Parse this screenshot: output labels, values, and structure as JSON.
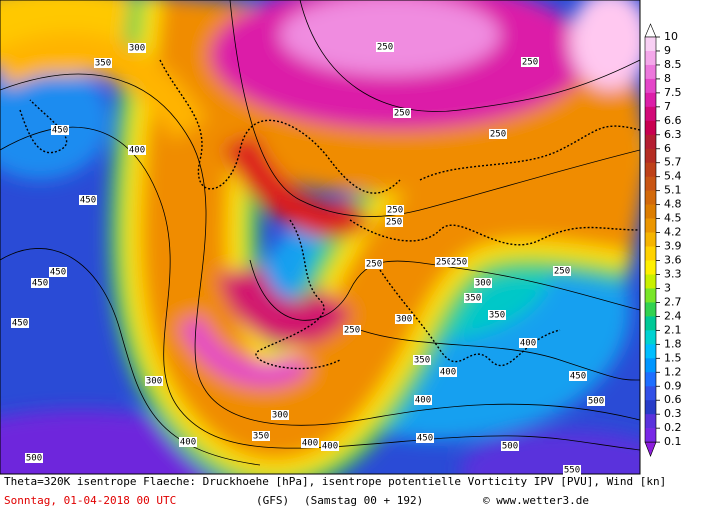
{
  "map": {
    "contour_labels": [
      300,
      350,
      400,
      450,
      450,
      450,
      450,
      450,
      300,
      300,
      350,
      400,
      400,
      400,
      450,
      500,
      500,
      550,
      250,
      250,
      250,
      250,
      250,
      250,
      250,
      250,
      250,
      250,
      250,
      300,
      300,
      350,
      350,
      350,
      400,
      400,
      400,
      450,
      500
    ]
  },
  "colorbar": {
    "ticks": [
      10,
      9,
      8.5,
      8,
      7.5,
      7,
      6.6,
      6.3,
      6,
      5.7,
      5.4,
      5.1,
      4.8,
      4.5,
      4.2,
      3.9,
      3.6,
      3.3,
      3,
      2.7,
      2.4,
      2.1,
      1.8,
      1.5,
      1.2,
      0.9,
      0.6,
      0.3,
      0.2,
      0.1
    ],
    "colors": [
      "#f8d0f4",
      "#f4a8ea",
      "#ec78dc",
      "#e446c8",
      "#dc1ea8",
      "#d20a78",
      "#c80050",
      "#b41e32",
      "#b42d23",
      "#be4119",
      "#c85514",
      "#d2690a",
      "#dc7d00",
      "#eb9600",
      "#f5b400",
      "#ffd200",
      "#fff000",
      "#c8f000",
      "#78e628",
      "#32d250",
      "#00c896",
      "#00d2d2",
      "#00beff",
      "#0096ff",
      "#1e6eff",
      "#3250e6",
      "#283cc8",
      "#5a32dc",
      "#7828e6"
    ],
    "over_color": "#ffffff",
    "under_color": "#8c1edc"
  },
  "footer": {
    "description": "Theta=320K isentrope Flaeche: Druckhoehe [hPa], isentrope potentielle Vorticity IPV [PVU], Wind [kn]",
    "date": "Sonntag, 01-04-2018  00 UTC",
    "model": "(GFS)",
    "run": "(Samstag 00 + 192)",
    "copyright": "© www.wetter3.de"
  }
}
